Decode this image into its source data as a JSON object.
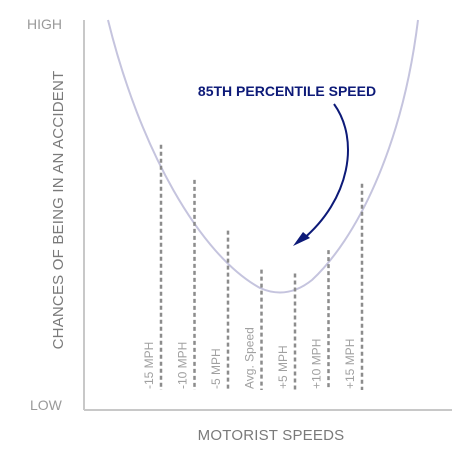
{
  "chart_data": {
    "type": "line",
    "title": "",
    "xlabel": "MOTORIST SPEEDS",
    "ylabel": "CHANCES OF BEING IN AN ACCIDENT",
    "y_high_label": "HIGH",
    "y_low_label": "LOW",
    "categories": [
      "-15 MPH",
      "-10 MPH",
      "-5 MPH",
      "Avg. Speed",
      "+5 MPH",
      "+10 MPH",
      "+15 MPH"
    ],
    "relative_risk": [
      0.68,
      0.59,
      0.46,
      0.36,
      0.35,
      0.41,
      0.58
    ],
    "annotation": "85TH PERCENTILE SPEED",
    "colors": {
      "curve": "#c5c4de",
      "bars": "#8c8c8c",
      "axis": "#c8c8c8",
      "annotation": "#0d1a78"
    }
  }
}
